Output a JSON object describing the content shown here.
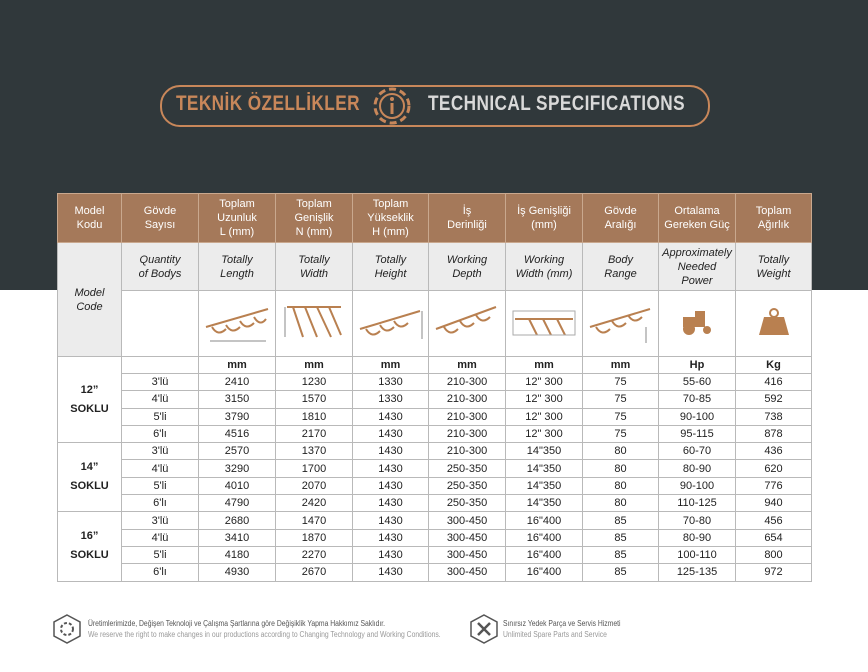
{
  "header": {
    "title_tr": "TEKNİK ÖZELLİKLER",
    "title_en": "TECHNICAL SPECIFICATIONS"
  },
  "table": {
    "columns": [
      {
        "tr": "Model\nKodu",
        "en": "Model\nCode"
      },
      {
        "tr": "Gövde\nSayısı",
        "en": "Quantity\nof Bodys"
      },
      {
        "tr": "Toplam\nUzunluk\nL (mm)",
        "en": "Totally\nLength"
      },
      {
        "tr": "Toplam\nGenişlik\nN (mm)",
        "en": "Totally\nWidth"
      },
      {
        "tr": "Toplam\nYükseklik\nH (mm)",
        "en": "Totally\nHeight"
      },
      {
        "tr": "İş\nDerinliği",
        "en": "Working\nDepth"
      },
      {
        "tr": "İş Genişliği\n(mm)",
        "en": "Working\nWidth (mm)"
      },
      {
        "tr": "Gövde\nAralığı",
        "en": "Body\nRange"
      },
      {
        "tr": "Ortalama\nGereken Güç",
        "en": "Approximately\nNeeded\nPower"
      },
      {
        "tr": "Toplam\nAğırlık",
        "en": "Totally\nWeight"
      }
    ],
    "units": [
      "mm",
      "mm",
      "mm",
      "mm",
      "mm",
      "mm",
      "Hp",
      "Kg"
    ],
    "groups": [
      {
        "label": "12”\nSOKLU",
        "rows": [
          [
            "3'lü",
            2410,
            1230,
            1330,
            "210-300",
            "12\" 300",
            75,
            "55-60",
            416
          ],
          [
            "4'lü",
            3150,
            1570,
            1330,
            "210-300",
            "12\" 300",
            75,
            "70-85",
            592
          ],
          [
            "5'li",
            3790,
            1810,
            1430,
            "210-300",
            "12\" 300",
            75,
            "90-100",
            738
          ],
          [
            "6'lı",
            4516,
            2170,
            1430,
            "210-300",
            "12\" 300",
            75,
            "95-115",
            878
          ]
        ]
      },
      {
        "label": "14”\nSOKLU",
        "rows": [
          [
            "3'lü",
            2570,
            1370,
            1430,
            "210-300",
            "14\"350",
            80,
            "60-70",
            436
          ],
          [
            "4'lü",
            3290,
            1700,
            1430,
            "250-350",
            "14\"350",
            80,
            "80-90",
            620
          ],
          [
            "5'li",
            4010,
            2070,
            1430,
            "250-350",
            "14\"350",
            80,
            "90-100",
            776
          ],
          [
            "6'lı",
            4790,
            2420,
            1430,
            "250-350",
            "14\"350",
            80,
            "110-125",
            940
          ]
        ]
      },
      {
        "label": "16”\nSOKLU",
        "rows": [
          [
            "3'lü",
            2680,
            1470,
            1430,
            "300-450",
            "16\"400",
            85,
            "70-80",
            456
          ],
          [
            "4'lü",
            3410,
            1870,
            1430,
            "300-450",
            "16\"400",
            85,
            "80-90",
            654
          ],
          [
            "5'li",
            4180,
            2270,
            1430,
            "300-450",
            "16\"400",
            85,
            "100-110",
            800
          ],
          [
            "6'lı",
            4930,
            2670,
            1430,
            "300-450",
            "16\"400",
            85,
            "125-135",
            972
          ]
        ]
      }
    ]
  },
  "footer": [
    {
      "tr": "Üretimlerimizde, Değişen Teknoloji ve Çalışma Şartlarına göre Değişiklik Yapma Hakkımız Saklıdır.",
      "en": "We reserve the right to make changes in our productions according to Changing Technology and Working Conditions."
    },
    {
      "tr": "Sınırsız Yedek Parça ve Servis Hizmeti",
      "en": "Unlimited Spare Parts and Service"
    }
  ]
}
